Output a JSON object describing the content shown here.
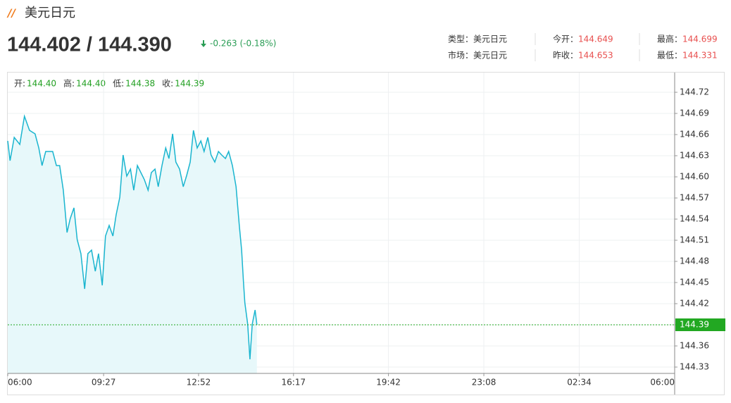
{
  "header": {
    "title": "美元日元",
    "price": "144.402 / 144.390",
    "change": "-0.263 (-0.18%)",
    "info": [
      [
        {
          "label": "类型：",
          "value": "美元日元"
        },
        {
          "label": "今开：",
          "value": "144.649"
        },
        {
          "label": "最高：",
          "value": "144.699"
        }
      ],
      [
        {
          "label": "市场：",
          "value": "美元日元"
        },
        {
          "label": "昨收：",
          "value": "144.653"
        },
        {
          "label": "最低：",
          "value": "144.331"
        }
      ]
    ]
  },
  "ohlc": [
    {
      "label": "开:",
      "value": "144.40"
    },
    {
      "label": "高:",
      "value": "144.40"
    },
    {
      "label": "低:",
      "value": "144.38"
    },
    {
      "label": "收:",
      "value": "144.39"
    }
  ],
  "chart_data": {
    "type": "area",
    "color": "#1ab5cf",
    "fill": "#e7f8fa",
    "grid": true,
    "x": [
      "06:00",
      "06:05",
      "06:14",
      "06:26",
      "06:36",
      "06:47",
      "06:59",
      "07:07",
      "07:14",
      "07:22",
      "07:37",
      "07:45",
      "07:52",
      "08:00",
      "08:08",
      "08:15",
      "08:23",
      "08:30",
      "08:38",
      "08:46",
      "08:53",
      "09:01",
      "09:09",
      "09:16",
      "09:24",
      "09:31",
      "09:39",
      "09:47",
      "09:54",
      "10:02",
      "10:09",
      "10:17",
      "10:25",
      "10:32",
      "10:40",
      "10:55",
      "11:03",
      "11:10",
      "11:18",
      "11:25",
      "11:33",
      "11:41",
      "11:48",
      "11:56",
      "12:03",
      "12:11",
      "12:19",
      "12:26",
      "12:34",
      "12:41",
      "12:49",
      "12:57",
      "13:04",
      "13:12",
      "13:19",
      "13:27",
      "13:35",
      "13:42",
      "13:50",
      "13:57",
      "14:05",
      "14:13",
      "14:20",
      "14:25",
      "14:29",
      "14:32",
      "14:38",
      "14:43",
      "14:48",
      "14:54",
      "14:58"
    ],
    "values": [
      144.651,
      144.623,
      144.656,
      144.646,
      144.686,
      144.666,
      144.661,
      144.641,
      144.616,
      144.636,
      144.636,
      144.616,
      144.616,
      144.581,
      144.521,
      144.541,
      144.556,
      144.511,
      144.491,
      144.441,
      144.491,
      144.496,
      144.466,
      144.491,
      144.446,
      144.516,
      144.531,
      144.516,
      144.546,
      144.571,
      144.631,
      144.601,
      144.611,
      144.581,
      144.616,
      144.596,
      144.581,
      144.606,
      144.611,
      144.586,
      144.616,
      144.641,
      144.626,
      144.661,
      144.621,
      144.611,
      144.586,
      144.601,
      144.621,
      144.666,
      144.641,
      144.651,
      144.636,
      144.656,
      144.631,
      144.621,
      144.636,
      144.631,
      144.626,
      144.636,
      144.616,
      144.586,
      144.531,
      144.496,
      144.451,
      144.421,
      144.391,
      144.341,
      144.391,
      144.411,
      144.39
    ],
    "xlim": [
      "06:00",
      "06:00"
    ],
    "xticks": [
      "06:00",
      "09:27",
      "12:52",
      "16:17",
      "19:42",
      "23:08",
      "02:34",
      "06:00"
    ],
    "ylim": [
      144.321,
      144.748
    ],
    "yticks": [
      144.33,
      144.36,
      144.39,
      144.42,
      144.45,
      144.48,
      144.51,
      144.54,
      144.57,
      {
        "value": 144.6,
        "label": "144.60"
      },
      144.63,
      144.66,
      144.69,
      144.72
    ],
    "last_price": 144.39,
    "last_color": "#22a822"
  }
}
